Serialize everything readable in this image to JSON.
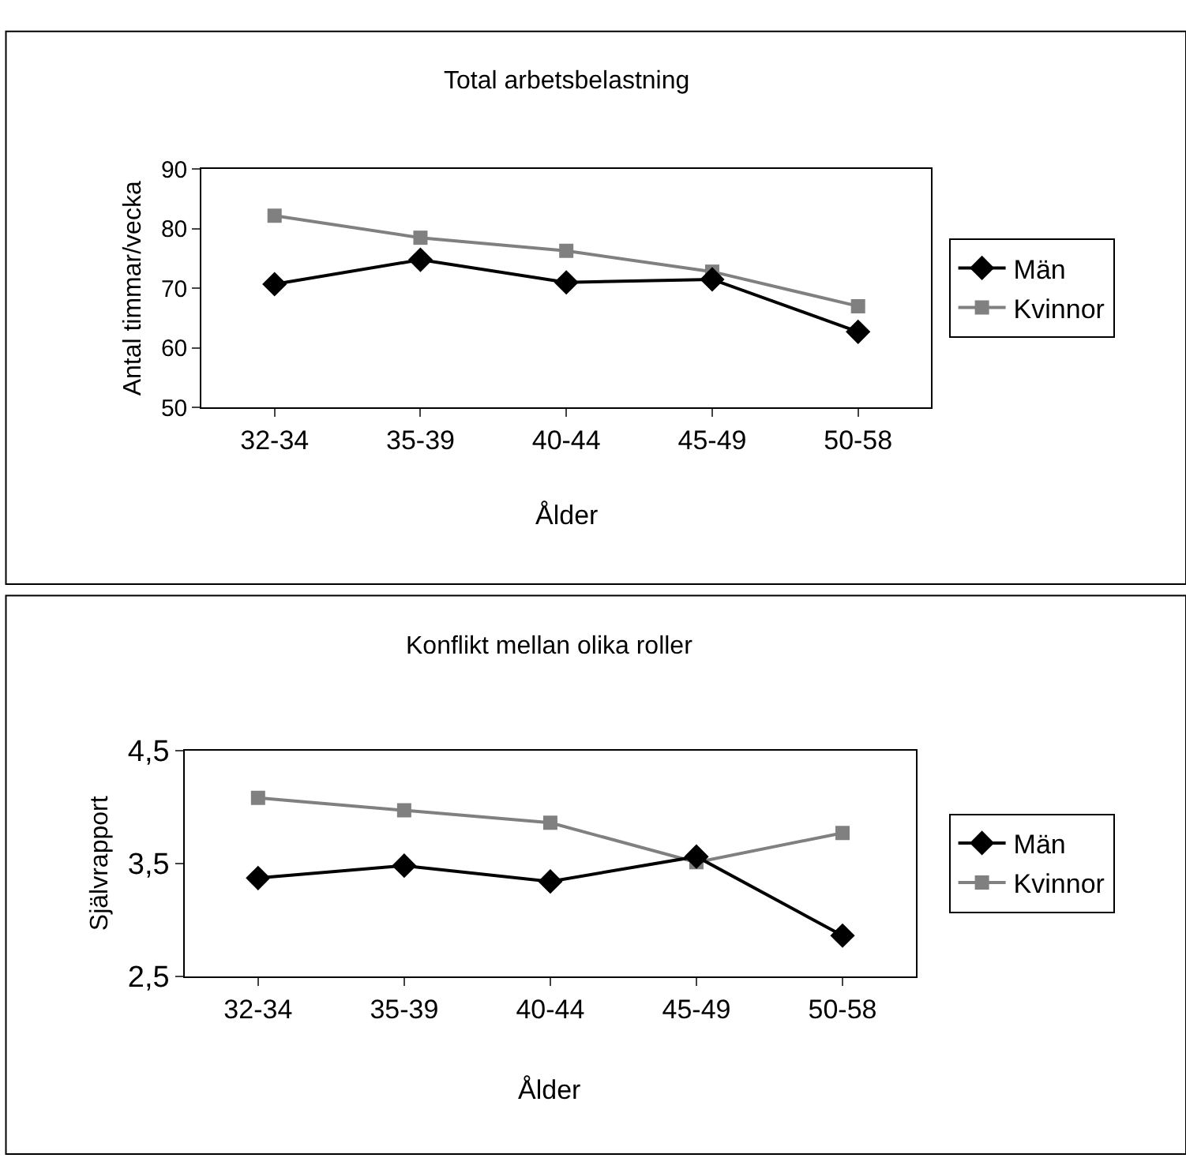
{
  "chart_data": [
    {
      "type": "line",
      "title": "Total arbetsbelastning",
      "xlabel": "Ålder",
      "ylabel": "Antal timmar/vecka",
      "categories": [
        "32-34",
        "35-39",
        "40-44",
        "45-49",
        "50-58"
      ],
      "series": [
        {
          "name": "Män",
          "color": "#000000",
          "marker": "diamond",
          "values": [
            70.7,
            74.8,
            71.0,
            71.5,
            62.7
          ]
        },
        {
          "name": "Kvinnor",
          "color": "#808080",
          "marker": "square",
          "values": [
            82.2,
            78.5,
            76.3,
            72.8,
            67.0
          ]
        }
      ],
      "ylim": [
        50,
        90
      ],
      "yticks": [
        50,
        60,
        70,
        80,
        90
      ],
      "grid": false,
      "legend": "right"
    },
    {
      "type": "line",
      "title": "Konflikt mellan olika roller",
      "xlabel": "Ålder",
      "ylabel": "Självrapport",
      "categories": [
        "32-34",
        "35-39",
        "40-44",
        "45-49",
        "50-58"
      ],
      "series": [
        {
          "name": "Män",
          "color": "#000000",
          "marker": "diamond",
          "values": [
            3.37,
            3.48,
            3.34,
            3.56,
            2.86
          ]
        },
        {
          "name": "Kvinnor",
          "color": "#808080",
          "marker": "square",
          "values": [
            4.08,
            3.97,
            3.86,
            3.51,
            3.77
          ]
        }
      ],
      "ylim": [
        2.5,
        4.5
      ],
      "yticks": [
        {
          "value": 2.5,
          "label": "2,5"
        },
        {
          "value": 3.5,
          "label": "3,5"
        },
        {
          "value": 4.5,
          "label": "4,5"
        }
      ],
      "grid": false,
      "legend": "right"
    }
  ]
}
